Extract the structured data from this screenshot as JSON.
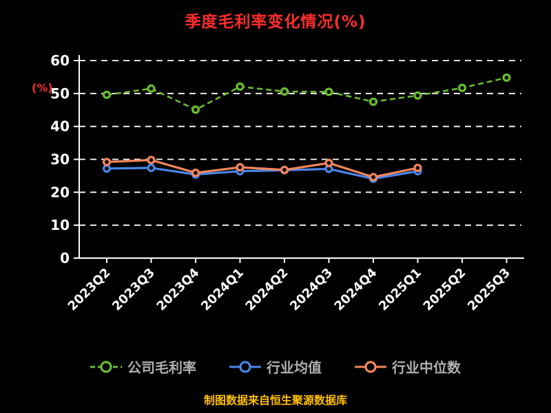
{
  "colors": {
    "background": "#000000",
    "title": "#ff2d2d",
    "ylabel": "#ff2d2d",
    "axis": "#ffffff",
    "grid": "#ffffff",
    "tick_label": "#ffffff",
    "legend_label": "#b0b0b0",
    "source_note": "#ffc000"
  },
  "chart_data": {
    "type": "line",
    "title": "季度毛利率变化情况(%)",
    "ylabel": "(%)",
    "xlabel": "",
    "ylim": [
      0,
      60
    ],
    "yticks": [
      0,
      10,
      20,
      30,
      40,
      50,
      60
    ],
    "grid": "horizontal-dashed",
    "legend_position": "bottom",
    "source_note": "制图数据来自恒生聚源数据库",
    "categories": [
      "2023Q2",
      "2023Q3",
      "2023Q4",
      "2024Q1",
      "2024Q2",
      "2024Q3",
      "2024Q4",
      "2025Q1",
      "2025Q2",
      "2025Q3"
    ],
    "series": [
      {
        "name": "公司毛利率",
        "color": "#6abe30",
        "style": "dashed",
        "values": [
          49.6,
          51.5,
          45.1,
          52.1,
          50.6,
          50.5,
          47.5,
          49.4,
          51.7,
          54.8
        ]
      },
      {
        "name": "行业均值",
        "color": "#4a86e8",
        "style": "solid",
        "values": [
          27.2,
          27.4,
          25.4,
          26.4,
          26.7,
          27.1,
          24.1,
          26.4,
          null,
          null
        ]
      },
      {
        "name": "行业中位数",
        "color": "#f5875c",
        "style": "solid",
        "values": [
          29.2,
          29.8,
          25.9,
          27.6,
          26.8,
          28.9,
          24.6,
          27.4,
          null,
          null
        ]
      }
    ]
  }
}
